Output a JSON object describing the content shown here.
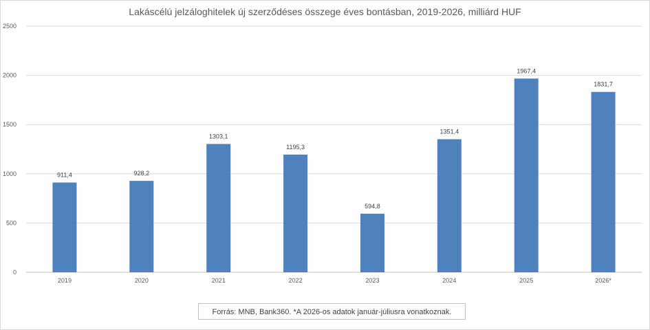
{
  "chart_data": {
    "type": "bar",
    "title": "Lakáscélú jelzáloghitelek új szerződéses összege éves bontásban, 2019-2026, milliárd HUF",
    "categories": [
      "2019",
      "2020",
      "2021",
      "2022",
      "2023",
      "2024",
      "2025",
      "2026*"
    ],
    "values": [
      911.4,
      928.2,
      1303.1,
      1195.3,
      594.8,
      1351.4,
      1967.4,
      1831.7
    ],
    "data_labels": [
      "911,4",
      "928,2",
      "1303,1",
      "1195,3",
      "594,8",
      "1351,4",
      "1967,4",
      "1831,7"
    ],
    "yticks": [
      "0",
      "500",
      "1000",
      "1500",
      "2000",
      "2500"
    ],
    "ylim": [
      0,
      2500
    ],
    "grid": true,
    "legend": "none",
    "bar_color": "#4f81bd"
  },
  "source_note": "Forrás: MNB, Bank360. *A 2026-os adatok január-júliusra vonatkoznak."
}
